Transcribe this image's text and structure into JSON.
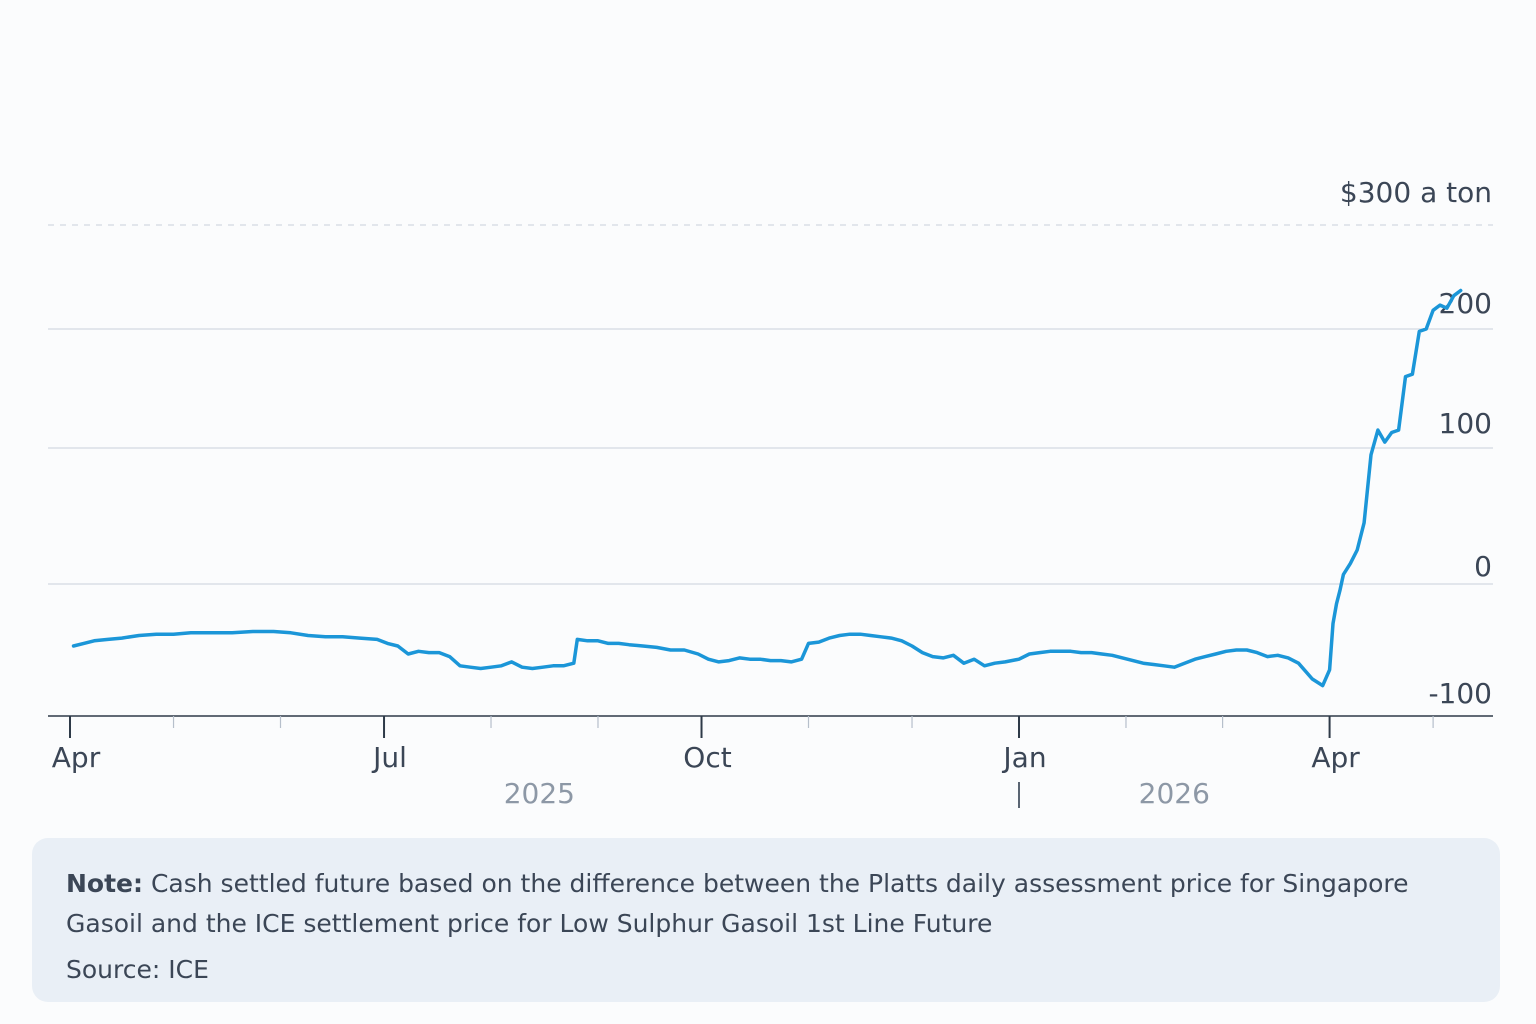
{
  "chart_data": {
    "type": "line",
    "title": "",
    "xlabel": "",
    "ylabel": "",
    "y_unit_label": "$300 a ton",
    "ylim": [
      -100,
      300
    ],
    "y_ticks": [
      {
        "value": 300,
        "label": "$300 a ton",
        "style": "dashed"
      },
      {
        "value": 200,
        "label": "200"
      },
      {
        "value": 100,
        "label": "100"
      },
      {
        "value": 0,
        "label": "0"
      },
      {
        "value": -100,
        "label": "-100"
      }
    ],
    "x_range": [
      "2025-04-01",
      "2026-05-10"
    ],
    "x_ticks_major": [
      {
        "date": "2025-04-01",
        "label": "Apr"
      },
      {
        "date": "2025-07-01",
        "label": "Jul"
      },
      {
        "date": "2025-10-01",
        "label": "Oct"
      },
      {
        "date": "2026-01-01",
        "label": "Jan"
      },
      {
        "date": "2026-04-01",
        "label": "Apr"
      }
    ],
    "x_ticks_minor": [
      "2025-05-01",
      "2025-06-01",
      "2025-08-01",
      "2025-09-01",
      "2025-11-01",
      "2025-12-01",
      "2026-02-01",
      "2026-03-01",
      "2026-05-01"
    ],
    "year_labels": [
      {
        "date": "2025-08-15",
        "label": "2025"
      },
      {
        "date": "2026-02-15",
        "label": "2026"
      }
    ],
    "year_divider": "2026-01-01",
    "grid": true,
    "series": [
      {
        "color": "#1b96d8",
        "points": [
          [
            "2025-04-02",
            -47
          ],
          [
            "2025-04-05",
            -45
          ],
          [
            "2025-04-08",
            -43
          ],
          [
            "2025-04-12",
            -42
          ],
          [
            "2025-04-16",
            -41
          ],
          [
            "2025-04-21",
            -39
          ],
          [
            "2025-04-26",
            -38
          ],
          [
            "2025-05-01",
            -38
          ],
          [
            "2025-05-06",
            -37
          ],
          [
            "2025-05-12",
            -37
          ],
          [
            "2025-05-18",
            -37
          ],
          [
            "2025-05-24",
            -36
          ],
          [
            "2025-05-30",
            -36
          ],
          [
            "2025-06-04",
            -37
          ],
          [
            "2025-06-09",
            -39
          ],
          [
            "2025-06-14",
            -40
          ],
          [
            "2025-06-19",
            -40
          ],
          [
            "2025-06-24",
            -41
          ],
          [
            "2025-06-29",
            -42
          ],
          [
            "2025-07-02",
            -45
          ],
          [
            "2025-07-05",
            -47
          ],
          [
            "2025-07-08",
            -53
          ],
          [
            "2025-07-11",
            -51
          ],
          [
            "2025-07-14",
            -52
          ],
          [
            "2025-07-17",
            -52
          ],
          [
            "2025-07-20",
            -55
          ],
          [
            "2025-07-23",
            -62
          ],
          [
            "2025-07-26",
            -63
          ],
          [
            "2025-07-29",
            -64
          ],
          [
            "2025-08-01",
            -63
          ],
          [
            "2025-08-04",
            -62
          ],
          [
            "2025-08-07",
            -59
          ],
          [
            "2025-08-10",
            -63
          ],
          [
            "2025-08-13",
            -64
          ],
          [
            "2025-08-16",
            -63
          ],
          [
            "2025-08-19",
            -62
          ],
          [
            "2025-08-22",
            -62
          ],
          [
            "2025-08-25",
            -60
          ],
          [
            "2025-08-26",
            -42
          ],
          [
            "2025-08-29",
            -43
          ],
          [
            "2025-09-01",
            -43
          ],
          [
            "2025-09-04",
            -45
          ],
          [
            "2025-09-07",
            -45
          ],
          [
            "2025-09-10",
            -46
          ],
          [
            "2025-09-14",
            -47
          ],
          [
            "2025-09-18",
            -48
          ],
          [
            "2025-09-22",
            -50
          ],
          [
            "2025-09-26",
            -50
          ],
          [
            "2025-09-30",
            -53
          ],
          [
            "2025-10-03",
            -57
          ],
          [
            "2025-10-06",
            -59
          ],
          [
            "2025-10-09",
            -58
          ],
          [
            "2025-10-12",
            -56
          ],
          [
            "2025-10-15",
            -57
          ],
          [
            "2025-10-18",
            -57
          ],
          [
            "2025-10-21",
            -58
          ],
          [
            "2025-10-24",
            -58
          ],
          [
            "2025-10-27",
            -59
          ],
          [
            "2025-10-30",
            -57
          ],
          [
            "2025-11-01",
            -45
          ],
          [
            "2025-11-04",
            -44
          ],
          [
            "2025-11-07",
            -41
          ],
          [
            "2025-11-10",
            -39
          ],
          [
            "2025-11-13",
            -38
          ],
          [
            "2025-11-16",
            -38
          ],
          [
            "2025-11-19",
            -39
          ],
          [
            "2025-11-22",
            -40
          ],
          [
            "2025-11-25",
            -41
          ],
          [
            "2025-11-28",
            -43
          ],
          [
            "2025-12-01",
            -47
          ],
          [
            "2025-12-04",
            -52
          ],
          [
            "2025-12-07",
            -55
          ],
          [
            "2025-12-10",
            -56
          ],
          [
            "2025-12-13",
            -54
          ],
          [
            "2025-12-16",
            -60
          ],
          [
            "2025-12-19",
            -57
          ],
          [
            "2025-12-22",
            -62
          ],
          [
            "2025-12-25",
            -60
          ],
          [
            "2025-12-28",
            -59
          ],
          [
            "2026-01-01",
            -57
          ],
          [
            "2026-01-04",
            -53
          ],
          [
            "2026-01-07",
            -52
          ],
          [
            "2026-01-10",
            -51
          ],
          [
            "2026-01-13",
            -51
          ],
          [
            "2026-01-16",
            -51
          ],
          [
            "2026-01-19",
            -52
          ],
          [
            "2026-01-22",
            -52
          ],
          [
            "2026-01-25",
            -53
          ],
          [
            "2026-01-28",
            -54
          ],
          [
            "2026-01-31",
            -56
          ],
          [
            "2026-02-03",
            -58
          ],
          [
            "2026-02-06",
            -60
          ],
          [
            "2026-02-09",
            -61
          ],
          [
            "2026-02-12",
            -62
          ],
          [
            "2026-02-15",
            -63
          ],
          [
            "2026-02-18",
            -60
          ],
          [
            "2026-02-21",
            -57
          ],
          [
            "2026-02-24",
            -55
          ],
          [
            "2026-02-27",
            -53
          ],
          [
            "2026-03-02",
            -51
          ],
          [
            "2026-03-05",
            -50
          ],
          [
            "2026-03-08",
            -50
          ],
          [
            "2026-03-11",
            -52
          ],
          [
            "2026-03-14",
            -55
          ],
          [
            "2026-03-17",
            -54
          ],
          [
            "2026-03-20",
            -56
          ],
          [
            "2026-03-23",
            -60
          ],
          [
            "2026-03-27",
            -72
          ],
          [
            "2026-03-30",
            -77
          ],
          [
            "2026-04-01",
            -65
          ],
          [
            "2026-04-02",
            -30
          ],
          [
            "2026-04-03",
            -15
          ],
          [
            "2026-04-04",
            -5
          ],
          [
            "2026-04-05",
            7
          ],
          [
            "2026-04-07",
            15
          ],
          [
            "2026-04-09",
            25
          ],
          [
            "2026-04-11",
            45
          ],
          [
            "2026-04-13",
            95
          ],
          [
            "2026-04-15",
            115
          ],
          [
            "2026-04-17",
            105
          ],
          [
            "2026-04-19",
            113
          ],
          [
            "2026-04-21",
            115
          ],
          [
            "2026-04-23",
            160
          ],
          [
            "2026-04-25",
            162
          ],
          [
            "2026-04-27",
            198
          ],
          [
            "2026-04-29",
            200
          ],
          [
            "2026-05-01",
            218
          ],
          [
            "2026-05-03",
            223
          ],
          [
            "2026-05-05",
            220
          ],
          [
            "2026-05-07",
            232
          ],
          [
            "2026-05-09",
            237
          ]
        ]
      }
    ]
  },
  "note": {
    "label": "Note:",
    "text": "Cash settled future based on the difference between the Platts daily assessment price for Singapore Gasoil and the ICE settlement price for Low Sulphur Gasoil 1st Line Future"
  },
  "source": "Source: ICE"
}
